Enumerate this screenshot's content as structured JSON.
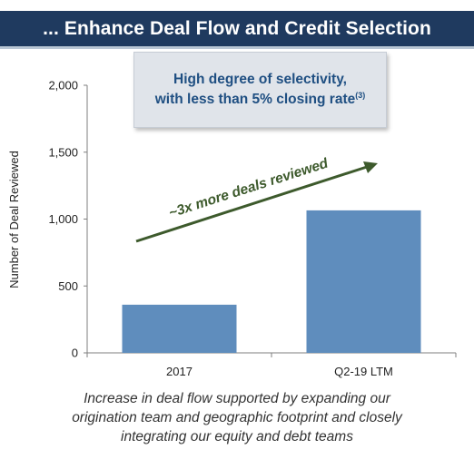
{
  "header": {
    "title": "... Enhance Deal Flow and Credit Selection"
  },
  "callout": {
    "line1": "High degree of selectivity,",
    "line2": "with less than 5% closing rate",
    "footnote": "(3)"
  },
  "annotation": {
    "arrow_text": "~3x more deals reviewed"
  },
  "caption": {
    "lines": [
      "Increase in deal flow supported by expanding our",
      "origination team and geographic footprint and closely",
      "integrating our equity and debt teams"
    ]
  },
  "colors": {
    "bar": "#5f8dbd",
    "header": "#1f3a5f",
    "arrow": "#3d5a2c",
    "callout_text": "#1f4f82"
  },
  "chart_data": {
    "type": "bar",
    "categories": [
      "2017",
      "Q2-19 LTM"
    ],
    "values": [
      360,
      1065
    ],
    "ylabel": "Number of Deal Reviewed",
    "ylim": [
      0,
      2000
    ],
    "yticks": [
      0,
      500,
      1000,
      1500,
      2000
    ],
    "ytick_labels": [
      "0",
      "500",
      "1,000",
      "1,500",
      "2,000"
    ],
    "grid": false
  }
}
